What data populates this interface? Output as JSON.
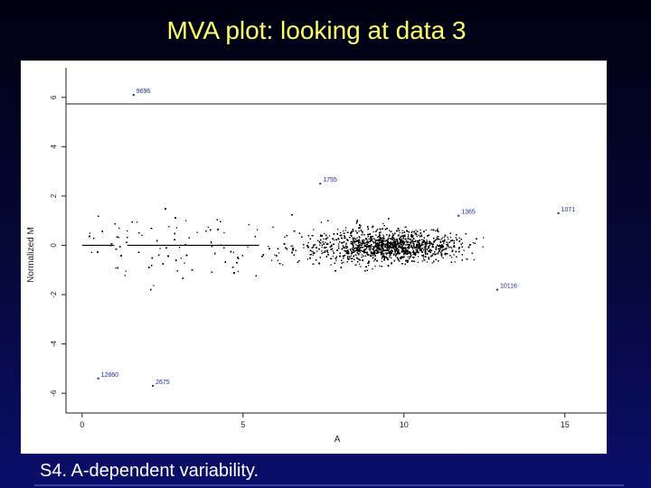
{
  "slide": {
    "title": "MVA plot: looking at data 3",
    "caption": "S4. A-dependent variability."
  },
  "chart_data": {
    "type": "scatter",
    "title": "",
    "xlabel": "A",
    "ylabel": "Normalized M",
    "xlim": [
      -0.5,
      16.3
    ],
    "ylim": [
      -6.8,
      7.2
    ],
    "xticks": [
      0,
      5,
      10,
      15
    ],
    "xtick_labels": [
      "0",
      "5",
      "10",
      "15"
    ],
    "yticks": [
      -6,
      -4,
      -2,
      0,
      2,
      4,
      6
    ],
    "ytick_labels": [
      "-6",
      "-4",
      "-2",
      "0",
      "2",
      "4",
      "6"
    ],
    "grid": false,
    "point_color": "#000000",
    "label_color": "#1a2a9a",
    "horizontal_segments": [
      {
        "x": [
          0,
          1
        ],
        "y": 0
      },
      {
        "x": [
          1.4,
          5.5
        ],
        "y": 0
      }
    ],
    "labeled_points": [
      {
        "label": "9696",
        "x": 1.6,
        "y": 6.1
      },
      {
        "label": "12860",
        "x": 0.5,
        "y": -5.4
      },
      {
        "label": "2675",
        "x": 2.2,
        "y": -5.7
      },
      {
        "label": "1755",
        "x": 7.4,
        "y": 2.5
      },
      {
        "label": "1365",
        "x": 11.7,
        "y": 1.2
      },
      {
        "label": "10116",
        "x": 12.9,
        "y": -1.8
      },
      {
        "label": "1071",
        "x": 14.8,
        "y": 1.3
      }
    ]
  }
}
